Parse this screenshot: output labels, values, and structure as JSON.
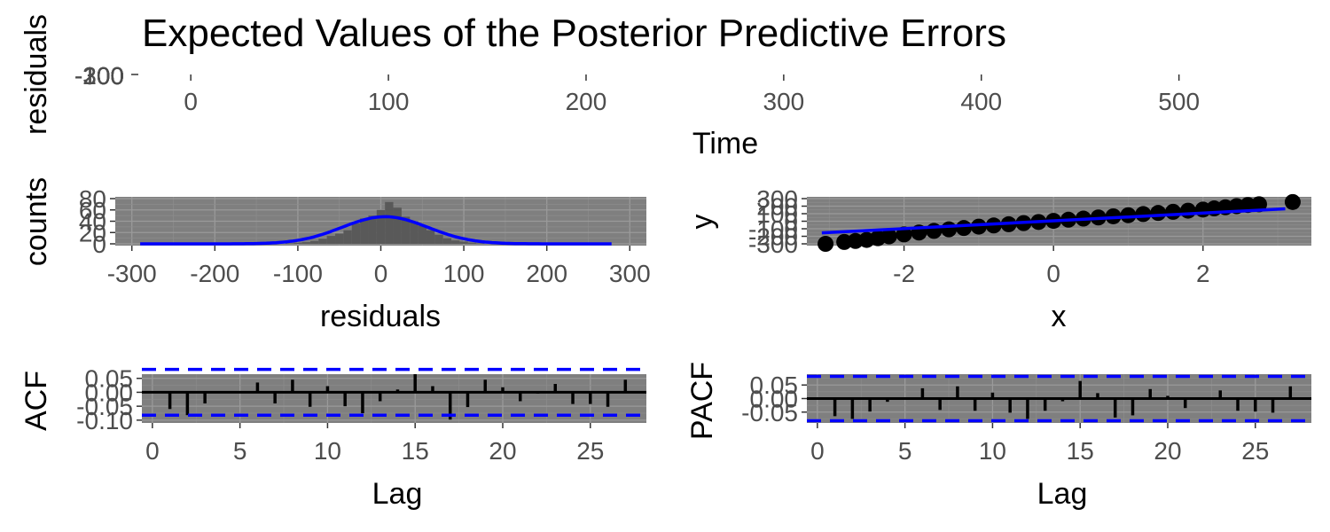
{
  "title": "Expected Values of the Posterior Predictive Errors",
  "colors": {
    "panel_bg": "#7f7f7f",
    "bars": "#595959",
    "fit_line": "#0000ff",
    "points": "#000000",
    "spikes": "#000000",
    "ci_lines": "#0000ff"
  },
  "chart_data": [
    {
      "id": "residuals-vs-time",
      "type": "line",
      "xlabel": "Time",
      "ylabel": "residuals",
      "xlim": [
        -27,
        567
      ],
      "x_ticks": [
        0,
        100,
        200,
        300,
        400,
        500
      ],
      "y_ticks_overlapping": [
        "-300",
        "-200",
        "-100",
        "0",
        "100",
        "200",
        "300"
      ],
      "grid": false
    },
    {
      "id": "residual-histogram",
      "type": "bar",
      "xlabel": "residuals",
      "ylabel": "counts",
      "xlim": [
        -320,
        320
      ],
      "ylim": [
        0,
        80
      ],
      "x_ticks": [
        -300,
        -200,
        -100,
        0,
        100,
        200,
        300
      ],
      "y_ticks": [
        0,
        20,
        40,
        60,
        80
      ],
      "bin_width": 10,
      "bins": [
        {
          "x": -110,
          "count": 1
        },
        {
          "x": -100,
          "count": 2
        },
        {
          "x": -90,
          "count": 3
        },
        {
          "x": -80,
          "count": 5
        },
        {
          "x": -70,
          "count": 9
        },
        {
          "x": -60,
          "count": 14
        },
        {
          "x": -50,
          "count": 18
        },
        {
          "x": -40,
          "count": 24
        },
        {
          "x": -30,
          "count": 36
        },
        {
          "x": -20,
          "count": 45
        },
        {
          "x": -10,
          "count": 50
        },
        {
          "x": 0,
          "count": 60
        },
        {
          "x": 10,
          "count": 74
        },
        {
          "x": 20,
          "count": 64
        },
        {
          "x": 30,
          "count": 48
        },
        {
          "x": 40,
          "count": 40
        },
        {
          "x": 50,
          "count": 32
        },
        {
          "x": 60,
          "count": 24
        },
        {
          "x": 70,
          "count": 16
        },
        {
          "x": 80,
          "count": 10
        },
        {
          "x": 90,
          "count": 6
        },
        {
          "x": 100,
          "count": 4
        },
        {
          "x": 110,
          "count": 2
        },
        {
          "x": 120,
          "count": 1
        }
      ],
      "normal_curve": {
        "mean": 5,
        "sd": 52,
        "peak": 48,
        "x_range": [
          -290,
          280
        ]
      },
      "grid": true
    },
    {
      "id": "qq-plot",
      "type": "scatter",
      "xlabel": "x",
      "ylabel": "y",
      "xlim": [
        -3.3,
        3.45
      ],
      "ylim": [
        -300,
        300
      ],
      "x_ticks": [
        -2,
        0,
        2
      ],
      "y_ticks": [
        -300,
        -200,
        -100,
        0,
        100,
        200,
        300
      ],
      "reference_line": {
        "x": [
          -3.1,
          3.1
        ],
        "y": [
          -155,
          165
        ]
      },
      "points": [
        {
          "x": -3.05,
          "y": -300
        },
        {
          "x": -2.8,
          "y": -275
        },
        {
          "x": -2.65,
          "y": -262
        },
        {
          "x": -2.5,
          "y": -248
        },
        {
          "x": -2.35,
          "y": -225
        },
        {
          "x": -2.2,
          "y": -200
        },
        {
          "x": -2.0,
          "y": -175
        },
        {
          "x": -1.8,
          "y": -150
        },
        {
          "x": -1.6,
          "y": -128
        },
        {
          "x": -1.4,
          "y": -108
        },
        {
          "x": -1.2,
          "y": -90
        },
        {
          "x": -1.0,
          "y": -72
        },
        {
          "x": -0.8,
          "y": -56
        },
        {
          "x": -0.6,
          "y": -40
        },
        {
          "x": -0.4,
          "y": -25
        },
        {
          "x": -0.2,
          "y": -10
        },
        {
          "x": 0.0,
          "y": 5
        },
        {
          "x": 0.2,
          "y": 20
        },
        {
          "x": 0.4,
          "y": 35
        },
        {
          "x": 0.6,
          "y": 50
        },
        {
          "x": 0.8,
          "y": 65
        },
        {
          "x": 1.0,
          "y": 80
        },
        {
          "x": 1.2,
          "y": 95
        },
        {
          "x": 1.4,
          "y": 110
        },
        {
          "x": 1.6,
          "y": 125
        },
        {
          "x": 1.8,
          "y": 140
        },
        {
          "x": 2.0,
          "y": 155
        },
        {
          "x": 2.15,
          "y": 170
        },
        {
          "x": 2.3,
          "y": 185
        },
        {
          "x": 2.45,
          "y": 200
        },
        {
          "x": 2.6,
          "y": 215
        },
        {
          "x": 2.75,
          "y": 225
        },
        {
          "x": 3.2,
          "y": 255
        }
      ],
      "grid": true
    },
    {
      "id": "acf",
      "type": "bar",
      "xlabel": "Lag",
      "ylabel": "ACF",
      "xlim": [
        -0.6,
        28.2
      ],
      "ylim": [
        -0.11,
        0.065
      ],
      "x_ticks": [
        0,
        5,
        10,
        15,
        20,
        25
      ],
      "y_ticks": [
        -0.1,
        -0.05,
        0.0,
        0.05
      ],
      "y_tick_labels": [
        "-0.10",
        "-0.05",
        "0.00",
        "0.05"
      ],
      "ci": 0.082,
      "lags": [
        1,
        2,
        3,
        4,
        5,
        6,
        7,
        8,
        9,
        10,
        11,
        12,
        13,
        14,
        15,
        16,
        17,
        18,
        19,
        20,
        21,
        22,
        23,
        24,
        25,
        26,
        27
      ],
      "values": [
        -0.06,
        -0.082,
        -0.04,
        0.0,
        -0.003,
        0.035,
        -0.04,
        0.045,
        -0.052,
        0.022,
        -0.05,
        -0.075,
        -0.032,
        0.01,
        0.065,
        0.022,
        -0.098,
        -0.053,
        0.045,
        0.018,
        -0.032,
        -0.005,
        0.03,
        -0.042,
        -0.042,
        -0.052,
        0.045
      ],
      "grid": true
    },
    {
      "id": "pacf",
      "type": "bar",
      "xlabel": "Lag",
      "ylabel": "PACF",
      "xlim": [
        -0.6,
        28.2
      ],
      "ylim": [
        -0.09,
        0.09
      ],
      "x_ticks": [
        0,
        5,
        10,
        15,
        20,
        25
      ],
      "y_ticks": [
        -0.05,
        0.0,
        0.05
      ],
      "y_tick_labels": [
        "-0.05",
        "0.00",
        "0.05"
      ],
      "ci": 0.082,
      "lags": [
        1,
        2,
        3,
        4,
        5,
        6,
        7,
        8,
        9,
        10,
        11,
        12,
        13,
        14,
        15,
        16,
        17,
        18,
        19,
        20,
        21,
        22,
        23,
        24,
        25,
        26,
        27
      ],
      "values": [
        -0.065,
        -0.075,
        -0.048,
        -0.012,
        -0.004,
        0.038,
        -0.042,
        0.045,
        -0.045,
        0.022,
        -0.052,
        -0.075,
        -0.045,
        -0.01,
        0.065,
        0.02,
        -0.07,
        -0.062,
        0.035,
        0.01,
        -0.035,
        -0.004,
        0.03,
        -0.045,
        -0.048,
        -0.052,
        0.045
      ],
      "grid": true
    }
  ]
}
